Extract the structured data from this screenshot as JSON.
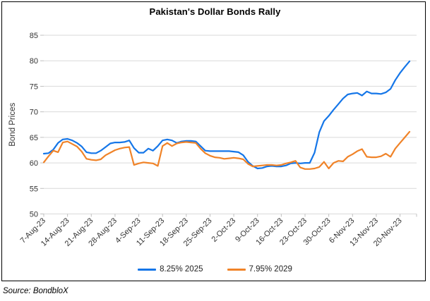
{
  "chart": {
    "title": "Pakistan's Dollar Bonds Rally"
  },
  "footer": {
    "source": "Source: BondbloX"
  },
  "colors": {
    "series_2025": "#1576E8",
    "series_2029": "#F08328",
    "gridline": "#D9D9D9",
    "tick": "#BFBFBF",
    "axis_text": "#333333"
  },
  "chart_data": {
    "type": "line",
    "title": "Pakistan's Dollar Bonds Rally",
    "xlabel": "",
    "ylabel": "Bond Prices",
    "ylim": [
      50,
      85
    ],
    "ytick_step": 5,
    "grid": true,
    "legend_position": "bottom",
    "y_tick_labels": [
      "85",
      "80",
      "75",
      "70",
      "65",
      "60",
      "55",
      "50"
    ],
    "x_tick_labels": [
      "7-Aug-23",
      "14-Aug-23",
      "21-Aug-23",
      "28-Aug-23",
      "4-Sep-23",
      "11-Sep-23",
      "18-Sep-23",
      "25-Sep-23",
      "2-Oct-23",
      "9-Oct-23",
      "16-Oct-23",
      "23-Oct-23",
      "30-Oct-23",
      "6-Nov-23",
      "13-Nov-23",
      "20-Nov-23"
    ],
    "x": [
      "7-Aug-23",
      "8-Aug-23",
      "9-Aug-23",
      "10-Aug-23",
      "11-Aug-23",
      "14-Aug-23",
      "15-Aug-23",
      "16-Aug-23",
      "17-Aug-23",
      "18-Aug-23",
      "21-Aug-23",
      "22-Aug-23",
      "23-Aug-23",
      "24-Aug-23",
      "25-Aug-23",
      "28-Aug-23",
      "29-Aug-23",
      "30-Aug-23",
      "31-Aug-23",
      "1-Sep-23",
      "4-Sep-23",
      "5-Sep-23",
      "6-Sep-23",
      "7-Sep-23",
      "8-Sep-23",
      "11-Sep-23",
      "12-Sep-23",
      "13-Sep-23",
      "14-Sep-23",
      "15-Sep-23",
      "18-Sep-23",
      "19-Sep-23",
      "20-Sep-23",
      "21-Sep-23",
      "22-Sep-23",
      "25-Sep-23",
      "26-Sep-23",
      "27-Sep-23",
      "28-Sep-23",
      "29-Sep-23",
      "2-Oct-23",
      "3-Oct-23",
      "4-Oct-23",
      "5-Oct-23",
      "6-Oct-23",
      "9-Oct-23",
      "10-Oct-23",
      "11-Oct-23",
      "12-Oct-23",
      "13-Oct-23",
      "16-Oct-23",
      "17-Oct-23",
      "18-Oct-23",
      "19-Oct-23",
      "20-Oct-23",
      "23-Oct-23",
      "24-Oct-23",
      "25-Oct-23",
      "26-Oct-23",
      "27-Oct-23",
      "30-Oct-23",
      "31-Oct-23",
      "1-Nov-23",
      "2-Nov-23",
      "3-Nov-23",
      "6-Nov-23",
      "7-Nov-23",
      "8-Nov-23",
      "9-Nov-23",
      "10-Nov-23",
      "13-Nov-23",
      "14-Nov-23",
      "15-Nov-23",
      "16-Nov-23",
      "17-Nov-23",
      "20-Nov-23",
      "21-Nov-23",
      "22-Nov-23"
    ],
    "series": [
      {
        "name": "8.25% 2025",
        "color": "#1576E8",
        "values": [
          61.8,
          61.9,
          62.6,
          63.9,
          64.6,
          64.7,
          64.4,
          63.9,
          63.2,
          62.1,
          61.9,
          61.9,
          62.4,
          63.1,
          63.8,
          64.0,
          64.0,
          64.1,
          64.4,
          62.9,
          62.0,
          62.0,
          62.8,
          62.4,
          63.3,
          64.4,
          64.6,
          64.4,
          63.9,
          64.2,
          64.3,
          64.3,
          64.2,
          63.3,
          62.4,
          62.3,
          62.3,
          62.3,
          62.3,
          62.3,
          62.2,
          62.1,
          61.5,
          60.2,
          59.4,
          58.9,
          59.0,
          59.3,
          59.4,
          59.3,
          59.3,
          59.5,
          59.9,
          60.0,
          59.9,
          60.0,
          60.0,
          62.0,
          66.0,
          68.2,
          69.2,
          70.4,
          71.5,
          72.6,
          73.4,
          73.6,
          73.7,
          73.2,
          74.0,
          73.6,
          73.6,
          73.5,
          73.8,
          74.5,
          76.2,
          77.6,
          78.8,
          79.9
        ]
      },
      {
        "name": "7.95% 2029",
        "color": "#F08328",
        "values": [
          60.1,
          61.3,
          62.4,
          62.1,
          64.0,
          64.2,
          63.7,
          63.2,
          62.2,
          60.8,
          60.6,
          60.5,
          60.7,
          61.5,
          62.0,
          62.5,
          62.8,
          63.0,
          63.1,
          59.6,
          59.9,
          60.1,
          60.0,
          59.9,
          59.4,
          63.3,
          63.9,
          63.3,
          63.8,
          64.0,
          64.1,
          64.0,
          63.9,
          62.8,
          61.9,
          61.4,
          61.1,
          61.0,
          60.8,
          60.9,
          61.0,
          60.9,
          60.7,
          59.8,
          59.3,
          59.4,
          59.5,
          59.6,
          59.6,
          59.5,
          59.6,
          59.9,
          60.1,
          60.4,
          59.1,
          58.8,
          58.8,
          58.9,
          59.2,
          60.2,
          58.9,
          60.0,
          60.4,
          60.3,
          61.2,
          61.7,
          62.3,
          62.7,
          61.2,
          61.1,
          61.1,
          61.3,
          61.8,
          61.2,
          62.8,
          63.9,
          65.0,
          66.1
        ]
      }
    ]
  }
}
